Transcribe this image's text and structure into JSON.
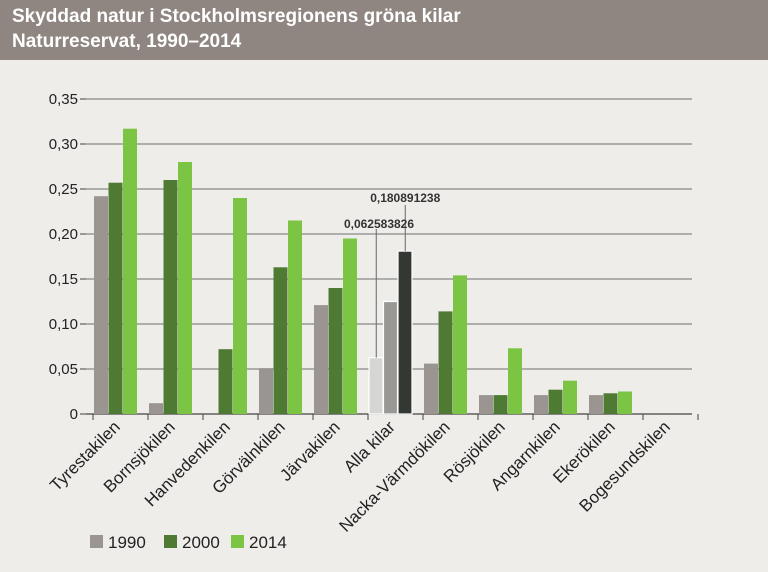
{
  "title": "Skyddad natur i Stockholmsregionens gröna kilar",
  "subtitle": "Naturreservat, 1990–2014",
  "colors": {
    "header_bg": "#8f8681",
    "series_1990": "#9b9591",
    "series_2000": "#4f7a33",
    "series_2014": "#7cc443",
    "alla_1990": "#d6d6d2",
    "alla_2000": "#9a9894",
    "alla_2014": "#343832"
  },
  "chart_data": {
    "type": "bar",
    "categories": [
      "Tyrestakilen",
      "Bornsjökilen",
      "Hanvedenkilen",
      "Görvälnkilen",
      "Järvakilen",
      "Alla kilar",
      "Nacka-Värmdökilen",
      "Rösjökilen",
      "Angarnkilen",
      "Ekerökilen",
      "Bogesundskilen"
    ],
    "series": [
      {
        "name": "1990",
        "values": [
          0.242,
          0.012,
          0.0,
          0.051,
          0.121,
          0.0626,
          0.056,
          0.021,
          0.021,
          0.021,
          0.0
        ]
      },
      {
        "name": "2000",
        "values": [
          0.257,
          0.26,
          0.072,
          0.163,
          0.14,
          0.125,
          0.114,
          0.021,
          0.027,
          0.023,
          0.0
        ]
      },
      {
        "name": "2014",
        "values": [
          0.317,
          0.28,
          0.24,
          0.215,
          0.195,
          0.181,
          0.154,
          0.073,
          0.037,
          0.025,
          0.0
        ]
      }
    ],
    "ylim": [
      0,
      0.35
    ],
    "yticks": [
      "0",
      "0,05",
      "0,10",
      "0,15",
      "0,20",
      "0,25",
      "0,30",
      "0,35"
    ],
    "annotations": [
      "0,180891238",
      "0,062583826"
    ],
    "legend": [
      "1990",
      "2000",
      "2014"
    ],
    "legend_position": "bottom-left",
    "grid": true,
    "xlabel": "",
    "ylabel": ""
  }
}
